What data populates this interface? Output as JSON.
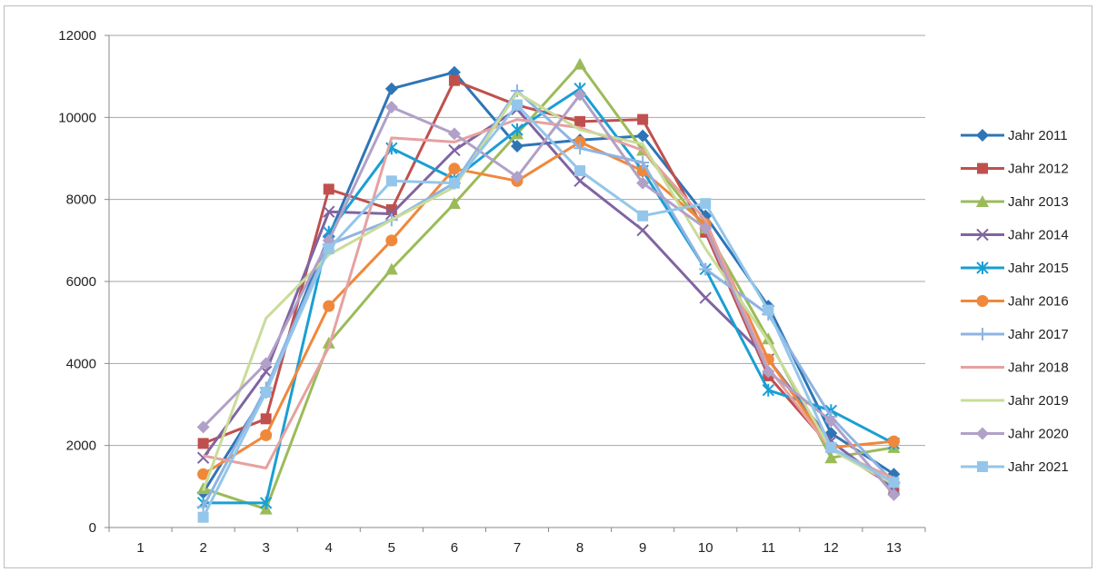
{
  "chart_data": {
    "type": "line",
    "title": "",
    "xlabel": "",
    "ylabel": "",
    "categories": [
      "1",
      "2",
      "3",
      "4",
      "5",
      "6",
      "7",
      "8",
      "9",
      "10",
      "11",
      "12",
      "13"
    ],
    "ylim": [
      0,
      12000
    ],
    "yticks": [
      0,
      2000,
      4000,
      6000,
      8000,
      10000,
      12000
    ],
    "grid": "horizontal",
    "legend_position": "right",
    "series": [
      {
        "name": "Jahr 2011",
        "color": "#2e75b6",
        "marker": "diamond",
        "values": [
          null,
          850,
          3300,
          7100,
          10700,
          11100,
          9300,
          9450,
          9550,
          7600,
          5400,
          2300,
          1300
        ]
      },
      {
        "name": "Jahr 2012",
        "color": "#c0504d",
        "marker": "square",
        "values": [
          null,
          2050,
          2650,
          8250,
          7750,
          10900,
          10300,
          9900,
          9950,
          7200,
          3700,
          1950,
          1000
        ]
      },
      {
        "name": "Jahr 2013",
        "color": "#9bbb59",
        "marker": "triangle",
        "values": [
          null,
          950,
          450,
          4500,
          6300,
          7900,
          9600,
          11300,
          9200,
          7300,
          4600,
          1700,
          1950
        ]
      },
      {
        "name": "Jahr 2014",
        "color": "#8064a2",
        "marker": "x",
        "values": [
          null,
          1700,
          3800,
          7700,
          7650,
          9200,
          10200,
          8450,
          7250,
          5600,
          4100,
          2100,
          950
        ]
      },
      {
        "name": "Jahr 2015",
        "color": "#1a9fd4",
        "marker": "star",
        "values": [
          null,
          600,
          600,
          7200,
          9250,
          8500,
          9700,
          10700,
          8700,
          6300,
          3350,
          2850,
          2050
        ]
      },
      {
        "name": "Jahr 2016",
        "color": "#f0883b",
        "marker": "circle",
        "values": [
          null,
          1300,
          2250,
          5400,
          7000,
          8750,
          8450,
          9400,
          8700,
          7400,
          4100,
          1950,
          2100
        ]
      },
      {
        "name": "Jahr 2017",
        "color": "#8eb4e3",
        "marker": "plus",
        "values": [
          null,
          500,
          3400,
          6900,
          7500,
          8400,
          10650,
          9250,
          8900,
          6300,
          5200,
          2700,
          1100
        ]
      },
      {
        "name": "Jahr 2018",
        "color": "#e6a1a0",
        "marker": "none",
        "values": [
          null,
          1750,
          1450,
          4400,
          9500,
          9400,
          9950,
          9750,
          9200,
          7500,
          3900,
          1900,
          1200
        ]
      },
      {
        "name": "Jahr 2019",
        "color": "#c9dc9a",
        "marker": "none",
        "values": [
          null,
          900,
          5100,
          6650,
          7500,
          8300,
          10600,
          9700,
          9350,
          6800,
          4550,
          1900,
          1050
        ]
      },
      {
        "name": "Jahr 2020",
        "color": "#b1a0c7",
        "marker": "diamond",
        "values": [
          null,
          2450,
          4000,
          7000,
          10250,
          9600,
          8550,
          10550,
          8400,
          7300,
          3800,
          2600,
          800
        ]
      },
      {
        "name": "Jahr 2021",
        "color": "#93c6ea",
        "marker": "square",
        "values": [
          null,
          250,
          3300,
          6800,
          8450,
          8400,
          10300,
          8700,
          7600,
          7900,
          5300,
          1950,
          1100
        ]
      }
    ]
  }
}
